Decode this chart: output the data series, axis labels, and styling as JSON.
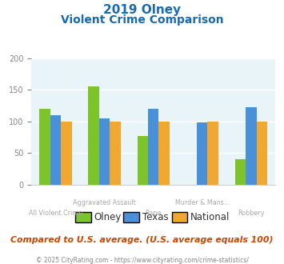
{
  "title_line1": "2019 Olney",
  "title_line2": "Violent Crime Comparison",
  "categories": [
    "All Violent Crime",
    "Aggravated Assault",
    "Rape",
    "Murder & Mans...",
    "Robbery"
  ],
  "upper_labels": [
    "",
    "Aggravated Assault",
    "",
    "Murder & Mans...",
    ""
  ],
  "lower_labels": [
    "All Violent Crime",
    "",
    "Rape",
    "",
    "Robbery"
  ],
  "series": {
    "Olney": [
      120,
      155,
      77,
      0,
      41
    ],
    "Texas": [
      110,
      105,
      120,
      98,
      122
    ],
    "National": [
      100,
      100,
      100,
      100,
      100
    ]
  },
  "series_names": [
    "Olney",
    "Texas",
    "National"
  ],
  "colors": {
    "Olney": "#7dc42a",
    "Texas": "#4a90d9",
    "National": "#f0a830"
  },
  "ylim": [
    0,
    200
  ],
  "yticks": [
    0,
    50,
    100,
    150,
    200
  ],
  "plot_bg_color": "#e8f4f8",
  "title_color": "#1a6aad",
  "footer_note": "Compared to U.S. average. (U.S. average equals 100)",
  "footer_note_color": "#cc4400",
  "copyright_text": "© 2025 CityRating.com - https://www.cityrating.com/crime-statistics/",
  "copyright_color": "#888888",
  "bar_width": 0.22,
  "grid_color": "#ffffff",
  "category_label_color": "#aaaaaa",
  "ytick_color": "#888888",
  "spine_color": "#cccccc"
}
